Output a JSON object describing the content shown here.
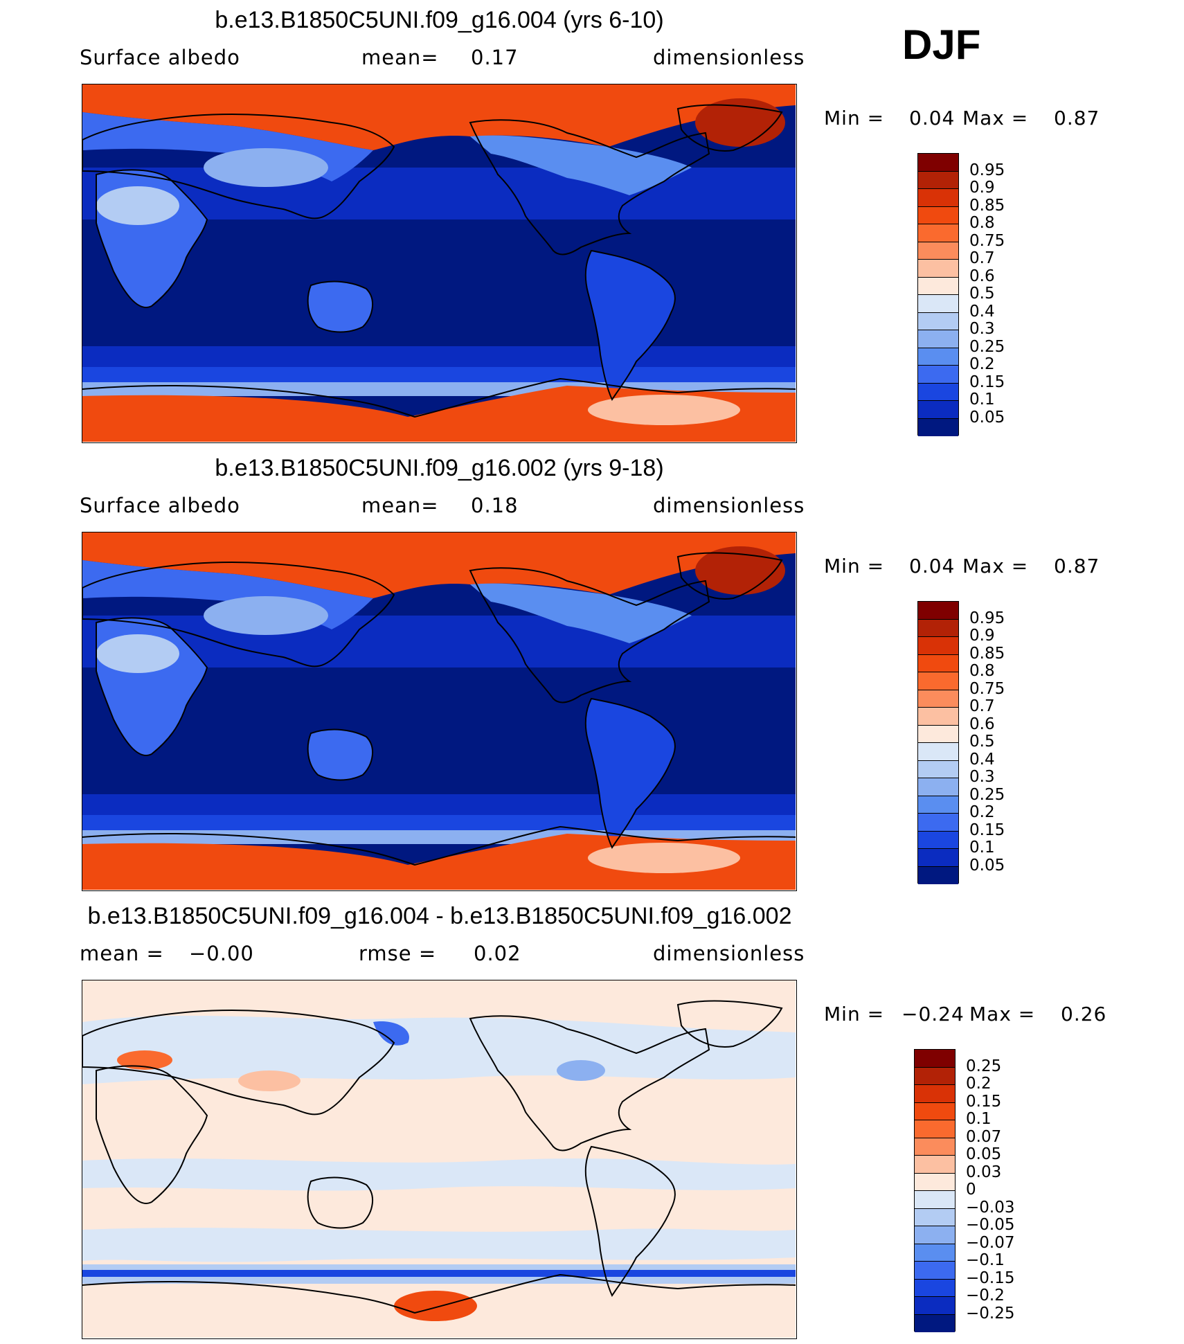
{
  "season": "DJF",
  "panels": [
    {
      "title": "b.e13.B1850C5UNI.f09_g16.004 (yrs 6-10)",
      "variable": "Surface albedo",
      "stat1_label": "mean=",
      "stat1_value": "0.17",
      "stat2_label": "",
      "stat2_value": "",
      "units": "dimensionless",
      "min_label": "Min =",
      "min_value": "0.04",
      "max_label": "Max =",
      "max_value": "0.87",
      "field": "albedo",
      "colorbar_labels": [
        "0.95",
        "0.9",
        "0.85",
        "0.8",
        "0.75",
        "0.7",
        "0.6",
        "0.5",
        "0.4",
        "0.3",
        "0.25",
        "0.2",
        "0.15",
        "0.1",
        "0.05"
      ],
      "colorbar_colors": [
        "#7f0000",
        "#b22206",
        "#d93206",
        "#f04a0f",
        "#fa6a2e",
        "#fb8c5c",
        "#fcc0a2",
        "#fde9dc",
        "#dae7f7",
        "#b3ccf3",
        "#8cb0f0",
        "#5a8ef0",
        "#3c6af0",
        "#1a46e0",
        "#0b2cc0",
        "#001880"
      ]
    },
    {
      "title": "b.e13.B1850C5UNI.f09_g16.002 (yrs 9-18)",
      "variable": "Surface albedo",
      "stat1_label": "mean=",
      "stat1_value": "0.18",
      "stat2_label": "",
      "stat2_value": "",
      "units": "dimensionless",
      "min_label": "Min =",
      "min_value": "0.04",
      "max_label": "Max =",
      "max_value": "0.87",
      "field": "albedo",
      "colorbar_labels": [
        "0.95",
        "0.9",
        "0.85",
        "0.8",
        "0.75",
        "0.7",
        "0.6",
        "0.5",
        "0.4",
        "0.3",
        "0.25",
        "0.2",
        "0.15",
        "0.1",
        "0.05"
      ],
      "colorbar_colors": [
        "#7f0000",
        "#b22206",
        "#d93206",
        "#f04a0f",
        "#fa6a2e",
        "#fb8c5c",
        "#fcc0a2",
        "#fde9dc",
        "#dae7f7",
        "#b3ccf3",
        "#8cb0f0",
        "#5a8ef0",
        "#3c6af0",
        "#1a46e0",
        "#0b2cc0",
        "#001880"
      ]
    },
    {
      "title": "b.e13.B1850C5UNI.f09_g16.004 - b.e13.B1850C5UNI.f09_g16.002",
      "variable": "",
      "stat1_label": "mean =",
      "stat1_value": "−0.00",
      "stat2_label": "rmse =",
      "stat2_value": "0.02",
      "units": "dimensionless",
      "min_label": "Min =",
      "min_value": "−0.24",
      "max_label": "Max =",
      "max_value": "0.26",
      "field": "difference",
      "colorbar_labels": [
        "0.25",
        "0.2",
        "0.15",
        "0.1",
        "0.07",
        "0.05",
        "0.03",
        "0",
        "−0.03",
        "−0.05",
        "−0.07",
        "−0.1",
        "−0.15",
        "−0.2",
        "−0.25"
      ],
      "colorbar_colors": [
        "#7f0000",
        "#b22206",
        "#d93206",
        "#f04a0f",
        "#fa6a2e",
        "#fb8c5c",
        "#fcc0a2",
        "#fde9dc",
        "#dae7f7",
        "#b3ccf3",
        "#8cb0f0",
        "#5a8ef0",
        "#3c6af0",
        "#1a46e0",
        "#0b2cc0",
        "#001880"
      ]
    }
  ]
}
